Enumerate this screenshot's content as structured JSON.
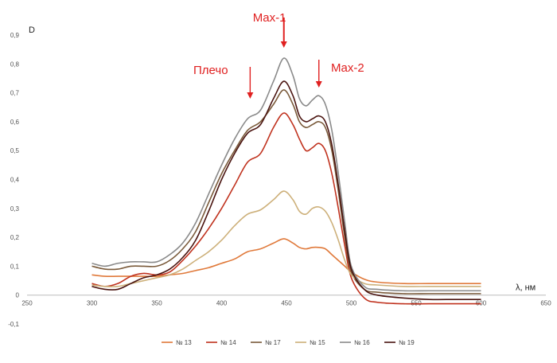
{
  "chart_data": {
    "type": "line",
    "xlabel": "λ, нм",
    "ylabel": "D",
    "xlim": [
      250,
      650
    ],
    "ylim": [
      -0.1,
      0.9
    ],
    "x_ticks": [
      250,
      300,
      350,
      400,
      450,
      500,
      550,
      600,
      650
    ],
    "y_ticks": [
      -0.1,
      0,
      0.1,
      0.2,
      0.3,
      0.4,
      0.5,
      0.6,
      0.7,
      0.8,
      0.9
    ],
    "x_tick_labels": [
      "250",
      "300",
      "350",
      "400",
      "450",
      "500",
      "550",
      "600",
      "650"
    ],
    "y_tick_labels": [
      "-0,1",
      "0",
      "0,1",
      "0,2",
      "0,3",
      "0,4",
      "0,5",
      "0,6",
      "0,7",
      "0,8",
      "0,9"
    ],
    "grid": false,
    "legend_position": "bottom",
    "x": [
      300,
      310,
      320,
      330,
      340,
      350,
      360,
      370,
      380,
      390,
      400,
      410,
      420,
      430,
      440,
      448,
      455,
      460,
      465,
      470,
      475,
      480,
      485,
      490,
      495,
      500,
      510,
      520,
      540,
      560,
      580,
      600
    ],
    "series": [
      {
        "name": "№ 13",
        "color": "#e0793a",
        "values": [
          0.07,
          0.065,
          0.065,
          0.065,
          0.065,
          0.065,
          0.07,
          0.075,
          0.085,
          0.095,
          0.11,
          0.125,
          0.15,
          0.16,
          0.18,
          0.195,
          0.18,
          0.165,
          0.16,
          0.165,
          0.165,
          0.16,
          0.14,
          0.12,
          0.1,
          0.08,
          0.055,
          0.045,
          0.04,
          0.04,
          0.04,
          0.04
        ]
      },
      {
        "name": "№ 14",
        "color": "#c0321e",
        "values": [
          0.04,
          0.03,
          0.04,
          0.065,
          0.075,
          0.07,
          0.08,
          0.12,
          0.17,
          0.23,
          0.3,
          0.38,
          0.46,
          0.49,
          0.58,
          0.63,
          0.59,
          0.54,
          0.5,
          0.51,
          0.525,
          0.5,
          0.42,
          0.3,
          0.17,
          0.06,
          -0.01,
          -0.025,
          -0.03,
          -0.03,
          -0.03,
          -0.03
        ]
      },
      {
        "name": "№ 17",
        "color": "#7a5a3a",
        "values": [
          0.1,
          0.09,
          0.09,
          0.1,
          0.1,
          0.1,
          0.12,
          0.16,
          0.22,
          0.32,
          0.42,
          0.5,
          0.57,
          0.6,
          0.66,
          0.71,
          0.66,
          0.6,
          0.58,
          0.59,
          0.6,
          0.58,
          0.5,
          0.36,
          0.2,
          0.08,
          0.02,
          0.01,
          0.005,
          0.005,
          0.005,
          0.005
        ]
      },
      {
        "name": "№ 15",
        "color": "#cdb07a",
        "values": [
          0.035,
          0.03,
          0.03,
          0.04,
          0.05,
          0.06,
          0.07,
          0.09,
          0.12,
          0.15,
          0.19,
          0.24,
          0.28,
          0.295,
          0.33,
          0.36,
          0.33,
          0.29,
          0.28,
          0.3,
          0.305,
          0.29,
          0.25,
          0.19,
          0.12,
          0.07,
          0.04,
          0.035,
          0.03,
          0.03,
          0.03,
          0.03
        ]
      },
      {
        "name": "№ 16",
        "color": "#8a8a8a",
        "values": [
          0.11,
          0.1,
          0.11,
          0.115,
          0.115,
          0.115,
          0.14,
          0.18,
          0.25,
          0.35,
          0.45,
          0.54,
          0.61,
          0.64,
          0.74,
          0.82,
          0.76,
          0.68,
          0.655,
          0.675,
          0.69,
          0.66,
          0.57,
          0.42,
          0.25,
          0.1,
          0.03,
          0.02,
          0.015,
          0.015,
          0.015,
          0.015
        ]
      },
      {
        "name": "№ 19",
        "color": "#4a1410",
        "values": [
          0.03,
          0.02,
          0.02,
          0.04,
          0.06,
          0.07,
          0.09,
          0.13,
          0.19,
          0.29,
          0.4,
          0.49,
          0.56,
          0.59,
          0.68,
          0.74,
          0.69,
          0.62,
          0.6,
          0.61,
          0.62,
          0.6,
          0.52,
          0.38,
          0.22,
          0.09,
          0.02,
          0.0,
          -0.01,
          -0.015,
          -0.015,
          -0.015
        ]
      }
    ],
    "annotations": [
      {
        "text": "Max-1",
        "x": 448
      },
      {
        "text": "Плечо",
        "x": 422
      },
      {
        "text": "Max-2",
        "x": 475
      }
    ],
    "annotation_color": "#e02020"
  }
}
